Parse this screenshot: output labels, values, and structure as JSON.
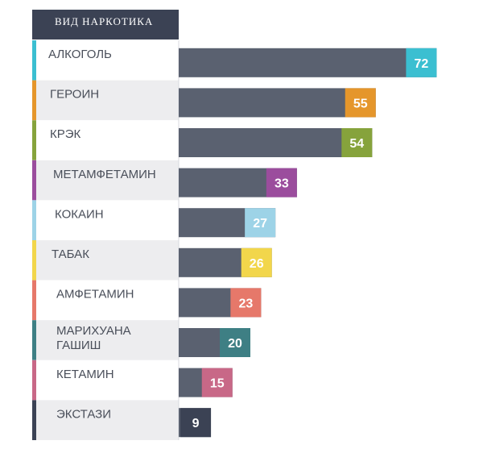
{
  "chart_data": {
    "type": "bar",
    "orientation": "horizontal",
    "header": "ВИД НАРКОТИКА",
    "categories": [
      [
        "АЛКОГОЛЬ"
      ],
      [
        "ГЕРОИН"
      ],
      [
        "КРЭК"
      ],
      [
        "МЕТАМФЕТАМИН"
      ],
      [
        "КОКАИН"
      ],
      [
        "ТАБАК"
      ],
      [
        "АМФЕТАМИН"
      ],
      [
        "МАРИХУАНА",
        "ГАШИШ"
      ],
      [
        "КЕТАМИН"
      ],
      [
        "ЭКСТАЗИ"
      ]
    ],
    "values": [
      72,
      55,
      54,
      33,
      27,
      26,
      23,
      20,
      15,
      9
    ],
    "colors": [
      "#3bbfd1",
      "#e5962b",
      "#86a33c",
      "#9b4d9d",
      "#9dd3e7",
      "#f2d64b",
      "#e6786a",
      "#3e7f84",
      "#c86887",
      "#3b4254"
    ],
    "bar_color": "#5a6170",
    "header_color": "#3b4254",
    "label_bg": [
      "#ffffff",
      "#ededef"
    ],
    "xlim": [
      0,
      80
    ],
    "grid": false,
    "legend": "none"
  }
}
